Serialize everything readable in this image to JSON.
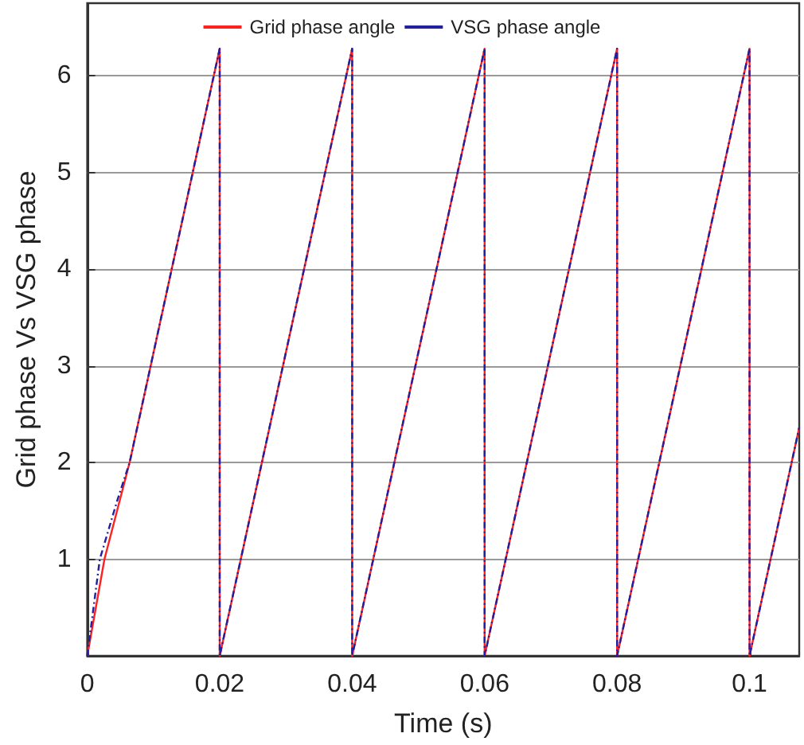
{
  "chart_data": {
    "type": "line",
    "xlabel": "Time (s)",
    "ylabel": "Grid phase Vs VSG phase",
    "series": [
      {
        "name": "Grid phase angle",
        "color": "#ff2020",
        "line_style": "solid",
        "x": [
          0,
          0.0026,
          0.0064,
          0.02,
          0.02,
          0.04,
          0.04,
          0.06,
          0.06,
          0.08,
          0.08,
          0.1,
          0.1,
          0.1075
        ],
        "values": [
          0,
          1,
          2,
          6.28,
          0,
          6.28,
          0,
          6.28,
          0,
          6.28,
          0,
          6.28,
          0,
          2.36
        ]
      },
      {
        "name": "VSG phase angle",
        "color": "#2020a0",
        "line_style": "dashed",
        "x": [
          0,
          0.0019,
          0.0045,
          0.0064,
          0.02,
          0.02,
          0.04,
          0.04,
          0.06,
          0.06,
          0.08,
          0.08,
          0.1,
          0.1,
          0.1075
        ],
        "values": [
          0,
          1,
          1.6,
          2,
          6.28,
          0,
          6.28,
          0,
          6.28,
          0,
          6.28,
          0,
          6.28,
          0,
          2.36
        ]
      }
    ],
    "xlim": [
      0,
      0.1075
    ],
    "xticks": [
      0,
      0.02,
      0.04,
      0.06,
      0.08,
      0.1
    ],
    "ylim": [
      0,
      6.75
    ],
    "yticks": [
      1,
      2,
      3,
      4,
      5,
      6
    ],
    "grid": "y",
    "legend": "top",
    "marker": "none"
  }
}
